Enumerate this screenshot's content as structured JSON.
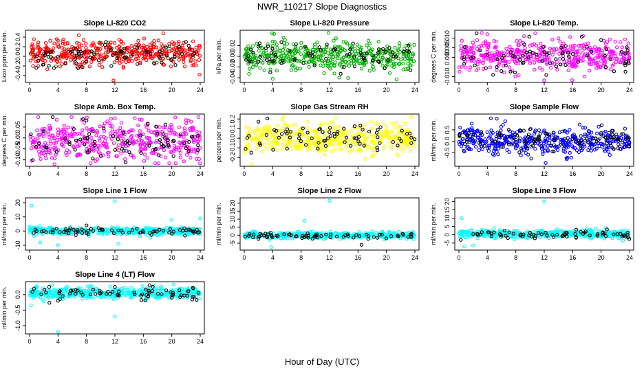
{
  "figure": {
    "title": "NWR_110217  Slope Diagnostics",
    "xlabel": "Hour of Day (UTC)"
  },
  "chart_data": [
    {
      "type": "scatter",
      "title": "Slope Li-820 CO2",
      "ylabel": "Licor ppm per min.",
      "xlim": [
        0,
        24
      ],
      "ylim": [
        -0.5,
        0.5
      ],
      "x_ticks": [
        0,
        4,
        8,
        12,
        16,
        20,
        24
      ],
      "y_ticks": [
        "-0.4",
        "-0.2",
        "0.0",
        "0.2",
        "0.4"
      ],
      "y_tick_values": [
        -0.4,
        -0.2,
        0.0,
        0.2,
        0.4
      ],
      "series": [
        {
          "color": "#ff0000",
          "center": 0.08,
          "spread": 0.14,
          "count": 430,
          "sample": [
            [
              0.5,
              0.12
            ],
            [
              2.0,
              0.02
            ],
            [
              4.0,
              0.25
            ],
            [
              8.0,
              -0.1
            ],
            [
              12.0,
              0.05
            ],
            [
              16.0,
              0.18
            ],
            [
              20.0,
              -0.05
            ],
            [
              23.5,
              0.1
            ]
          ]
        },
        {
          "color": "#000000",
          "center": 0.02,
          "spread": 0.12,
          "count": 70,
          "sample": [
            [
              1.0,
              0.0
            ],
            [
              6.0,
              0.1
            ],
            [
              11.5,
              -0.2
            ],
            [
              17.0,
              0.05
            ],
            [
              22.0,
              0.3
            ]
          ]
        }
      ],
      "outliers": [
        [
          11.8,
          -0.5
        ],
        [
          18.8,
          0.48
        ],
        [
          23.9,
          -0.38
        ]
      ]
    },
    {
      "type": "scatter",
      "title": "Slope Li-820 Pressure",
      "ylabel": "kPa per min.",
      "xlim": [
        0,
        24
      ],
      "ylim": [
        -0.045,
        0.045
      ],
      "x_ticks": [
        0,
        4,
        8,
        12,
        16,
        20,
        24
      ],
      "y_ticks": [
        "-0.04",
        "-0.02",
        "0.00",
        "0.02"
      ],
      "y_tick_values": [
        -0.04,
        -0.02,
        0.0,
        0.02
      ],
      "series": [
        {
          "color": "#00b000",
          "center": 0.0,
          "spread": 0.014,
          "count": 430,
          "sample": [
            [
              0.5,
              0.005
            ],
            [
              4.0,
              0.02
            ],
            [
              8.0,
              -0.01
            ],
            [
              12.0,
              0.0
            ],
            [
              16.0,
              0.01
            ],
            [
              20.0,
              -0.005
            ]
          ]
        },
        {
          "color": "#000000",
          "center": -0.002,
          "spread": 0.012,
          "count": 70,
          "sample": [
            [
              2.0,
              -0.01
            ],
            [
              9.0,
              0.005
            ],
            [
              14.0,
              -0.02
            ],
            [
              21.0,
              0.0
            ]
          ]
        }
      ],
      "outliers": [
        [
          4.2,
          0.042
        ],
        [
          4.0,
          -0.042
        ]
      ]
    },
    {
      "type": "scatter",
      "title": "Slope Li-820 Temp.",
      "ylabel": "degrees C per min.",
      "xlim": [
        0,
        24
      ],
      "ylim": [
        -0.012,
        0.013
      ],
      "x_ticks": [
        0,
        4,
        8,
        12,
        16,
        20,
        24
      ],
      "y_ticks": [
        "-0.010",
        "0.000",
        "0.005",
        "0.010"
      ],
      "y_tick_values": [
        -0.01,
        0.0,
        0.005,
        0.01
      ],
      "series": [
        {
          "color": "#ff00ff",
          "center": 0.001,
          "spread": 0.004,
          "count": 430,
          "sample": [
            [
              0.5,
              0.002
            ],
            [
              4.0,
              0.006
            ],
            [
              8.0,
              -0.003
            ],
            [
              12.0,
              0.0
            ],
            [
              16.0,
              0.004
            ],
            [
              20.0,
              -0.002
            ]
          ]
        },
        {
          "color": "#000000",
          "center": 0.0,
          "spread": 0.004,
          "count": 70,
          "sample": [
            [
              2.0,
              0.0
            ],
            [
              10.0,
              0.003
            ],
            [
              15.0,
              -0.004
            ],
            [
              20.0,
              0.009
            ]
          ]
        }
      ],
      "outliers": [
        [
          4.0,
          0.012
        ],
        [
          12.0,
          -0.012
        ]
      ]
    },
    {
      "type": "scatter",
      "title": "Slope Amb. Box Temp.",
      "ylabel": "degrees C per min.",
      "xlim": [
        0,
        24
      ],
      "ylim": [
        -0.12,
        0.1
      ],
      "x_ticks": [
        0,
        4,
        8,
        12,
        16,
        20,
        24
      ],
      "y_ticks": [
        "-0.10",
        "-0.05",
        "0.00",
        "0.05"
      ],
      "y_tick_values": [
        -0.1,
        -0.05,
        0.0,
        0.05
      ],
      "series": [
        {
          "color": "#ff00ff",
          "center": -0.01,
          "spread": 0.045,
          "count": 430,
          "sample": [
            [
              0.5,
              0.0
            ],
            [
              4.0,
              0.04
            ],
            [
              8.0,
              -0.05
            ],
            [
              12.0,
              0.02
            ],
            [
              16.0,
              -0.02
            ],
            [
              20.0,
              0.05
            ]
          ]
        },
        {
          "color": "#000000",
          "center": -0.01,
          "spread": 0.045,
          "count": 70,
          "sample": [
            [
              2.0,
              0.03
            ],
            [
              8.0,
              0.08
            ],
            [
              13.0,
              -0.05
            ],
            [
              19.0,
              0.0
            ]
          ]
        }
      ],
      "outliers": [
        [
          12.0,
          0.09
        ],
        [
          3.5,
          -0.12
        ]
      ]
    },
    {
      "type": "scatter",
      "title": "Slope Gas Stream RH",
      "ylabel": "percent per min.",
      "xlim": [
        0,
        24
      ],
      "ylim": [
        -0.27,
        0.23
      ],
      "x_ticks": [
        0,
        4,
        8,
        12,
        16,
        20,
        24
      ],
      "y_ticks": [
        "-0.2",
        "-0.1",
        "0.0",
        "0.1",
        "0.2"
      ],
      "y_tick_values": [
        -0.2,
        -0.1,
        0.0,
        0.1,
        0.2
      ],
      "series": [
        {
          "color": "#ffff00",
          "center": 0.0,
          "spread": 0.075,
          "count": 430,
          "sample": [
            [
              0.5,
              0.05
            ],
            [
              4.0,
              -0.1
            ],
            [
              8.0,
              0.1
            ],
            [
              12.0,
              0.0
            ],
            [
              16.0,
              -0.05
            ],
            [
              20.0,
              0.08
            ]
          ]
        },
        {
          "color": "#000000",
          "center": 0.0,
          "spread": 0.07,
          "count": 70,
          "sample": [
            [
              1.0,
              -0.15
            ],
            [
              6.0,
              0.05
            ],
            [
              14.0,
              0.1
            ],
            [
              23.5,
              -0.05
            ]
          ]
        }
      ],
      "outliers": [
        [
          1.0,
          -0.27
        ],
        [
          23.5,
          0.22
        ]
      ]
    },
    {
      "type": "scatter",
      "title": "Slope Sample Flow",
      "ylabel": "ml/min per min.",
      "xlim": [
        0,
        24
      ],
      "ylim": [
        -1.0,
        1.1
      ],
      "x_ticks": [
        0,
        4,
        8,
        12,
        16,
        20,
        24
      ],
      "y_ticks": [
        "-0.5",
        "0.0",
        "0.5"
      ],
      "y_tick_values": [
        -0.5,
        0.0,
        0.5
      ],
      "series": [
        {
          "color": "#0000ff",
          "center": 0.0,
          "spread": 0.28,
          "count": 430,
          "sample": [
            [
              0.5,
              0.1
            ],
            [
              4.0,
              0.4
            ],
            [
              8.0,
              -0.3
            ],
            [
              12.0,
              0.0
            ],
            [
              16.0,
              0.2
            ],
            [
              20.0,
              -0.1
            ]
          ]
        },
        {
          "color": "#000000",
          "center": 0.1,
          "spread": 0.25,
          "count": 70,
          "sample": [
            [
              3.0,
              0.0
            ],
            [
              7.0,
              0.5
            ],
            [
              13.0,
              -0.2
            ],
            [
              20.0,
              0.3
            ]
          ]
        }
      ],
      "outliers": [
        [
          4.5,
          1.0
        ],
        [
          12.2,
          -0.95
        ]
      ]
    },
    {
      "type": "scatter",
      "title": "Slope Line 1 Flow",
      "ylabel": "ml/min per min.",
      "xlim": [
        0,
        24
      ],
      "ylim": [
        -12,
        22
      ],
      "x_ticks": [
        0,
        4,
        8,
        12,
        16,
        20,
        24
      ],
      "y_ticks": [
        "-10",
        "0",
        "10",
        "20"
      ],
      "y_tick_values": [
        -10,
        0,
        10,
        20
      ],
      "series": [
        {
          "color": "#00ffff",
          "center": 0.0,
          "spread": 1.3,
          "count": 430,
          "sample": [
            [
              0.5,
              1.0
            ],
            [
              4.0,
              -1.0
            ],
            [
              8.0,
              0.5
            ],
            [
              12.0,
              0.0
            ],
            [
              16.0,
              1.0
            ],
            [
              20.0,
              -0.5
            ]
          ]
        },
        {
          "color": "#000000",
          "center": 0.0,
          "spread": 1.2,
          "count": 70,
          "sample": [
            [
              2.0,
              0.0
            ],
            [
              8.0,
              4.0
            ],
            [
              14.0,
              -1.0
            ],
            [
              22.0,
              0.5
            ]
          ]
        }
      ],
      "outliers": [
        [
          0.3,
          18.0
        ],
        [
          12.0,
          21.0
        ],
        [
          1.5,
          -8.0
        ],
        [
          4.0,
          -10.0
        ],
        [
          12.5,
          -9.0
        ],
        [
          20.0,
          8.0
        ],
        [
          24.0,
          9.0
        ]
      ]
    },
    {
      "type": "scatter",
      "title": "Slope Line 2 Flow",
      "ylabel": "ml/min per min.",
      "xlim": [
        0,
        24
      ],
      "ylim": [
        -8,
        22
      ],
      "x_ticks": [
        0,
        4,
        8,
        12,
        16,
        20,
        24
      ],
      "y_ticks": [
        "-5",
        "0",
        "5",
        "10",
        "15",
        "20"
      ],
      "y_tick_values": [
        -5,
        0,
        5,
        10,
        15,
        20
      ],
      "series": [
        {
          "color": "#00ffff",
          "center": 0.0,
          "spread": 1.0,
          "count": 430,
          "sample": [
            [
              0.5,
              1.0
            ],
            [
              4.0,
              -1.0
            ],
            [
              8.0,
              0.5
            ],
            [
              12.0,
              0.0
            ],
            [
              16.0,
              1.0
            ],
            [
              20.0,
              -0.5
            ]
          ]
        },
        {
          "color": "#000000",
          "center": -0.3,
          "spread": 1.0,
          "count": 70,
          "sample": [
            [
              2.0,
              -1.0
            ],
            [
              10.0,
              0.0
            ],
            [
              16.5,
              -6.0
            ],
            [
              23.5,
              -1.0
            ]
          ]
        }
      ],
      "outliers": [
        [
          12.0,
          21.5
        ],
        [
          8.5,
          9.0
        ],
        [
          3.8,
          -7.5
        ]
      ]
    },
    {
      "type": "scatter",
      "title": "Slope Line 3 Flow",
      "ylabel": "ml/min per min.",
      "xlim": [
        0,
        24
      ],
      "ylim": [
        -8,
        21
      ],
      "x_ticks": [
        0,
        4,
        8,
        12,
        16,
        20,
        24
      ],
      "y_ticks": [
        "-5",
        "0",
        "5",
        "10",
        "15",
        "20"
      ],
      "y_tick_values": [
        -5,
        0,
        5,
        10,
        15,
        20
      ],
      "series": [
        {
          "color": "#00ffff",
          "center": 0.5,
          "spread": 1.2,
          "count": 430,
          "sample": [
            [
              0.5,
              1.0
            ],
            [
              4.0,
              -1.0
            ],
            [
              8.0,
              0.5
            ],
            [
              12.0,
              0.0
            ],
            [
              16.0,
              1.0
            ],
            [
              20.0,
              -0.5
            ]
          ]
        },
        {
          "color": "#000000",
          "center": 0.0,
          "spread": 1.1,
          "count": 70,
          "sample": [
            [
              3.0,
              0.0
            ],
            [
              9.0,
              -1.0
            ],
            [
              16.5,
              3.0
            ],
            [
              23.0,
              -1.0
            ]
          ]
        }
      ],
      "outliers": [
        [
          12.0,
          20.0
        ],
        [
          0.4,
          10.0
        ],
        [
          0.8,
          -7.0
        ],
        [
          2.0,
          -6.5
        ]
      ]
    },
    {
      "type": "scatter",
      "title": "Slope Line 4 (LT) Flow",
      "ylabel": "ml/min per min.",
      "xlim": [
        0,
        24
      ],
      "ylim": [
        -1.2,
        0.35
      ],
      "x_ticks": [
        0,
        4,
        8,
        12,
        16,
        20,
        24
      ],
      "y_ticks": [
        "-1.0",
        "-0.5",
        "0.0"
      ],
      "y_tick_values": [
        -1.0,
        -0.5,
        0.0
      ],
      "series": [
        {
          "color": "#00ffff",
          "center": 0.05,
          "spread": 0.09,
          "count": 430,
          "sample": [
            [
              0.5,
              0.1
            ],
            [
              4.0,
              -0.1
            ],
            [
              8.0,
              0.05
            ],
            [
              12.0,
              0.0
            ],
            [
              16.0,
              0.1
            ],
            [
              20.0,
              -0.05
            ]
          ]
        },
        {
          "color": "#000000",
          "center": 0.05,
          "spread": 0.1,
          "count": 70,
          "sample": [
            [
              4.0,
              -0.2
            ],
            [
              12.0,
              0.25
            ],
            [
              20.0,
              -0.1
            ],
            [
              23.0,
              0.2
            ]
          ]
        }
      ],
      "outliers": [
        [
          4.0,
          -1.2
        ],
        [
          12.0,
          -0.7
        ],
        [
          0.2,
          -0.35
        ]
      ]
    }
  ]
}
